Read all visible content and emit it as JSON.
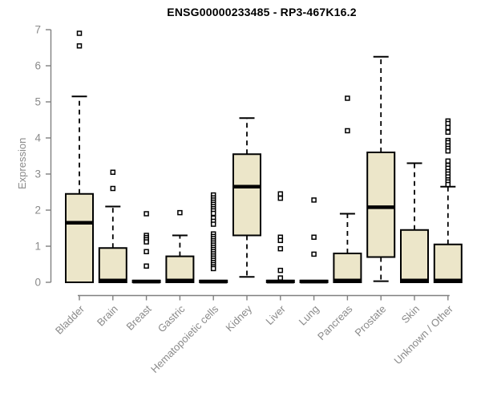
{
  "figure": {
    "title": "ENSG00000233485 - RP3-467K16.2",
    "ylabel": "Expression"
  },
  "chart_data": {
    "type": "boxplot",
    "title": "ENSG00000233485 - RP3-467K16.2",
    "xlabel": "",
    "ylabel": "Expression",
    "ylim": [
      0,
      7
    ],
    "yticks": [
      0,
      1,
      2,
      3,
      4,
      5,
      6,
      7
    ],
    "grid": false,
    "legend": "none",
    "colors": {
      "box_fill": "#ECE6C9",
      "box_stroke": "#000000",
      "median": "#000000",
      "whisker": "#000000",
      "outlier_stroke": "#000000",
      "outlier_fill": "#ffffff",
      "axis_line": "#808080",
      "axis_text": "#8a8a8a",
      "title_text": "#000000",
      "background": "#ffffff"
    },
    "categories": [
      "Bladder",
      "Brain",
      "Breast",
      "Gastric",
      "Hematopoietic cells",
      "Kidney",
      "Liver",
      "Lung",
      "Pancreas",
      "Prostate",
      "Skin",
      "Unknown / Other"
    ],
    "boxes": [
      {
        "label": "Bladder",
        "q1": 0,
        "median": 1.65,
        "q3": 2.45,
        "whisker_low": 0,
        "whisker_high": 5.15,
        "outliers": [
          6.9,
          6.55
        ]
      },
      {
        "label": "Brain",
        "q1": 0,
        "median": 0.05,
        "q3": 0.95,
        "whisker_low": 0,
        "whisker_high": 2.1,
        "outliers": [
          3.05,
          2.6
        ]
      },
      {
        "label": "Breast",
        "q1": 0,
        "median": 0.02,
        "q3": 0.05,
        "whisker_low": 0,
        "whisker_high": 0.05,
        "outliers": [
          1.9,
          1.3,
          1.24,
          1.18,
          1.12,
          0.85,
          0.45
        ]
      },
      {
        "label": "Gastric",
        "q1": 0,
        "median": 0.05,
        "q3": 0.72,
        "whisker_low": 0,
        "whisker_high": 1.3,
        "outliers": [
          1.93
        ]
      },
      {
        "label": "Hematopoietic cells",
        "q1": 0,
        "median": 0.02,
        "q3": 0.05,
        "whisker_low": 0,
        "whisker_high": 0.05,
        "outliers": [
          2.42,
          2.34,
          2.28,
          2.22,
          2.16,
          2.1,
          2.04,
          1.98,
          1.91,
          1.78,
          1.69,
          1.61,
          1.34,
          1.27,
          1.21,
          1.15,
          1.09,
          1.03,
          0.97,
          0.91,
          0.85,
          0.79,
          0.73,
          0.67,
          0.61,
          0.55,
          0.49,
          0.43,
          0.38
        ]
      },
      {
        "label": "Kidney",
        "q1": 1.3,
        "median": 2.65,
        "q3": 3.55,
        "whisker_low": 0.15,
        "whisker_high": 4.55,
        "outliers": []
      },
      {
        "label": "Liver",
        "q1": 0,
        "median": 0.02,
        "q3": 0.05,
        "whisker_low": 0,
        "whisker_high": 0.05,
        "outliers": [
          2.45,
          2.33,
          1.25,
          1.16,
          0.93,
          0.33,
          0.12
        ]
      },
      {
        "label": "Lung",
        "q1": 0,
        "median": 0.02,
        "q3": 0.05,
        "whisker_low": 0,
        "whisker_high": 0.05,
        "outliers": [
          2.28,
          1.25,
          0.78
        ]
      },
      {
        "label": "Pancreas",
        "q1": 0,
        "median": 0.05,
        "q3": 0.8,
        "whisker_low": 0,
        "whisker_high": 1.9,
        "outliers": [
          5.1,
          4.2
        ]
      },
      {
        "label": "Prostate",
        "q1": 0.7,
        "median": 2.08,
        "q3": 3.6,
        "whisker_low": 0.03,
        "whisker_high": 6.25,
        "outliers": []
      },
      {
        "label": "Skin",
        "q1": 0,
        "median": 0.05,
        "q3": 1.45,
        "whisker_low": 0,
        "whisker_high": 3.3,
        "outliers": []
      },
      {
        "label": "Unknown / Other",
        "q1": 0,
        "median": 0.05,
        "q3": 1.05,
        "whisker_low": 0,
        "whisker_high": 2.65,
        "outliers": [
          4.47,
          4.4,
          4.29,
          4.16,
          3.93,
          3.87,
          3.78,
          3.71,
          3.64,
          3.36,
          3.24,
          3.16,
          3.07,
          3.0,
          2.92,
          2.84,
          2.78,
          2.71
        ]
      }
    ]
  }
}
